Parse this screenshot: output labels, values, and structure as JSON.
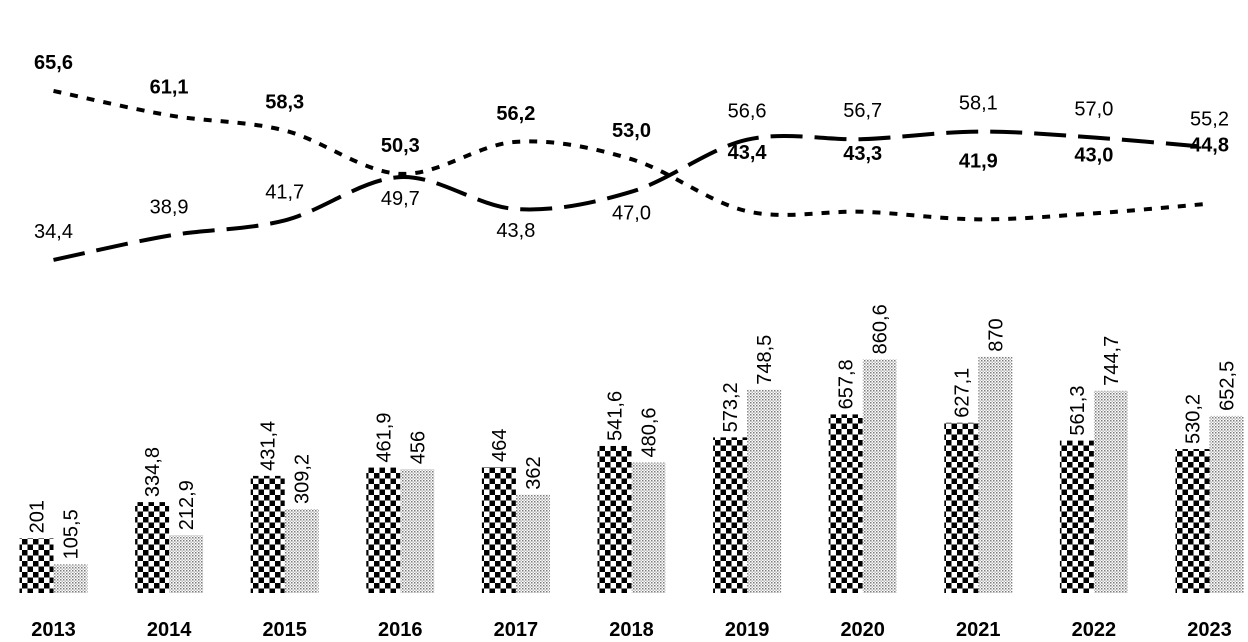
{
  "chart_data": {
    "type": "bar",
    "categories": [
      "2013",
      "2014",
      "2015",
      "2016",
      "2017",
      "2018",
      "2019",
      "2020",
      "2021",
      "2022",
      "2023"
    ],
    "series": [
      {
        "values": [
          201,
          334.8,
          431.4,
          461.9,
          464,
          541.6,
          573.2,
          657.8,
          627.1,
          561.3,
          530.2
        ],
        "labels": [
          "201",
          "334,8",
          "431,4",
          "461,9",
          "464",
          "541,6",
          "573,2",
          "657,8",
          "627,1",
          "561,3",
          "530,2"
        ]
      },
      {
        "values": [
          105.5,
          212.9,
          309.2,
          456,
          362,
          480.6,
          748.5,
          860.6,
          870,
          744.7,
          652.5
        ],
        "labels": [
          "105,5",
          "212,9",
          "309,2",
          "456",
          "362",
          "480,6",
          "748,5",
          "860,6",
          "870",
          "744,7",
          "652,5"
        ]
      }
    ],
    "lines": [
      {
        "style": "long-dash",
        "values": [
          34.4,
          38.9,
          41.7,
          49.7,
          43.8,
          47.0,
          56.6,
          56.7,
          58.1,
          57.0,
          55.2
        ],
        "labels": [
          "34,4",
          "38,9",
          "41,7",
          "49,7",
          "43,8",
          "47,0",
          "56,6",
          "56,7",
          "58,1",
          "57,0",
          "55,2"
        ]
      },
      {
        "style": "short-dash",
        "values": [
          65.6,
          61.1,
          58.3,
          50.3,
          56.2,
          53.0,
          43.4,
          43.3,
          41.9,
          43.0,
          44.8
        ],
        "labels": [
          "65,6",
          "61,1",
          "58,3",
          "50,3",
          "56,2",
          "53,0",
          "43,4",
          "43,3",
          "41,9",
          "43,0",
          "44,8"
        ]
      }
    ],
    "bar_scale": [
      0,
      1000
    ],
    "line_scale": [
      20,
      75
    ],
    "grid": false,
    "legend": "none"
  }
}
